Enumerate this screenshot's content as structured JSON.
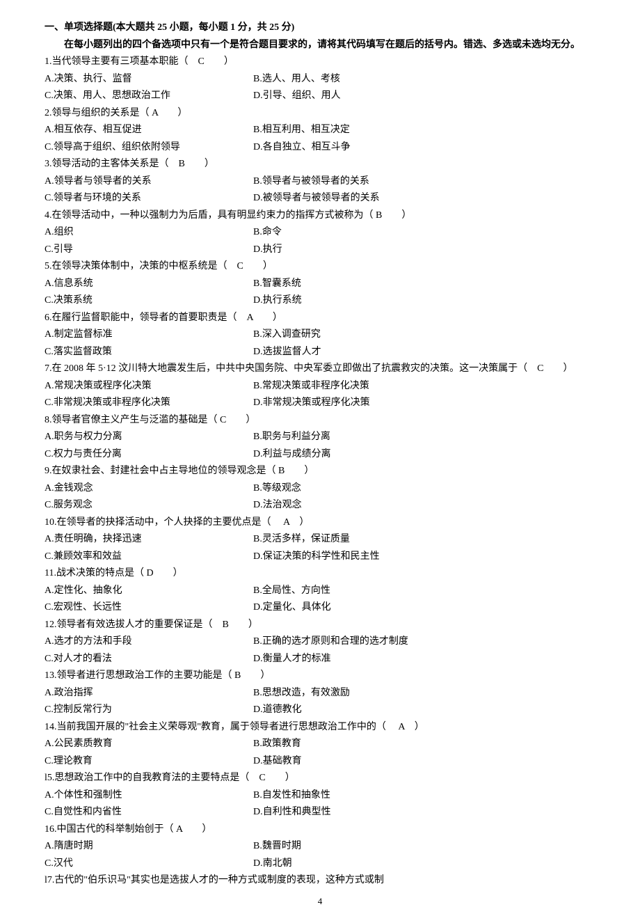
{
  "section_title": "一、单项选择题(本大题共 25 小题，每小题 1 分，共 25 分)",
  "instruction": "在每小题列出的四个备选项中只有一个是符合题目要求的，请将其代码填写在题后的括号内。错选、多选或未选均无分。",
  "page_number": "4",
  "questions": [
    {
      "stem": "1.当代领导主要有三项基本职能（　C　　）",
      "A": "A.决策、执行、监督",
      "B": "B.选人、用人、考核",
      "C": "C.决策、用人、思想政治工作",
      "D": "D.引导、组织、用人"
    },
    {
      "stem": "2.领导与组织的关系是（  A　　）",
      "A": "A.相互依存、相互促进",
      "B": "B.相互利用、相互决定",
      "C": "C.领导高于组织、组织依附领导",
      "D": "D.各自独立、相互斗争"
    },
    {
      "stem": "3.领导活动的主客体关系是（　B　　）",
      "A": "A.领导者与领导者的关系",
      "B": "B.领导者与被领导者的关系",
      "C": "C.领导者与环境的关系",
      "D": "D.被领导者与被领导者的关系"
    },
    {
      "stem": "4.在领导活动中，一种以强制力为后盾，具有明显约束力的指挥方式被称为（  B　　）",
      "A": "A.组织",
      "B": "B.命令",
      "C": "C.引导",
      "D": "D.执行"
    },
    {
      "stem": "5.在领导决策体制中，决策的中枢系统是（　C　　）",
      "A": "A.信息系统",
      "B": "B.智囊系统",
      "C": "C.决策系统",
      "D": "D.执行系统"
    },
    {
      "stem": "6.在履行监督职能中，领导者的首要职责是（　A　　）",
      "A": "A.制定监督标准",
      "B": "B.深入调查研究",
      "C": "C.落实监督政策",
      "D": "D.选拔监督人才"
    },
    {
      "stem": "7.在 2008 年 5·12 汶川特大地震发生后，中共中央国务院、中央军委立即做出了抗震救灾的决策。这一决策属于（　C　　）",
      "A": "A.常规决策或程序化决策",
      "B": "B.常规决策或非程序化决策",
      "C": "C.非常规决策或非程序化决策",
      "D": "D.非常规决策或程序化决策"
    },
    {
      "stem": "8.领导者官僚主义产生与泛滥的基础是（  C　　）",
      "A": "A.职务与权力分离",
      "B": "B.职务与利益分离",
      "C": "C.权力与责任分离",
      "D": "D.利益与成绩分离"
    },
    {
      "stem": "9.在奴隶社会、封建社会中占主导地位的领导观念是（  B　　）",
      "A": "A.金钱观念",
      "B": "B.等级观念",
      "C": "C.服务观念",
      "D": "D.法治观念"
    },
    {
      "stem": "10.在领导者的抉择活动中，个人抉择的主要优点是（　 A　）",
      "A": "A.责任明确，抉择迅速",
      "B": "B.灵活多样，保证质量",
      "C": "C.兼顾效率和效益",
      "D": "D.保证决策的科学性和民主性"
    },
    {
      "stem": "11.战术决策的特点是（  D　　）",
      "A": "A.定性化、抽象化",
      "B": "B.全局性、方向性",
      "C": "C.宏观性、长远性",
      "D": "D.定量化、具体化"
    },
    {
      "stem": "12.领导者有效选拔人才的重要保证是（　B　　）",
      "A": "A.选才的方法和手段",
      "B": "B.正确的选才原则和合理的选才制度",
      "C": "C.对人才的看法",
      "D": "D.衡量人才的标准"
    },
    {
      "stem": "13.领导者进行思想政治工作的主要功能是（  B　　）",
      "A": "A.政治指挥",
      "B": "B.思想改造，有效激励",
      "C": "C.控制反常行为",
      "D": "D.道德教化"
    },
    {
      "stem": "14.当前我国开展的\"社会主义荣辱观\"教育，属于领导者进行思想政治工作中的（　  A　）",
      "A": "A.公民素质教育",
      "B": "B.政策教育",
      "C": "C.理论教育",
      "D": "D.基础教育"
    },
    {
      "stem": "l5.思想政治工作中的自我教育法的主要特点是（　C　　）",
      "A": "A.个体性和强制性",
      "B": "B.自发性和抽象性",
      "C": "C.自觉性和内省性",
      "D": "D.自利性和典型性"
    },
    {
      "stem": "16.中国古代的科举制始创于（  A　　）",
      "A": "A.隋唐时期",
      "B": "B.魏晋时期",
      "C": "C.汉代",
      "D": "D.南北朝"
    }
  ],
  "trailing_line": "l7.古代的\"伯乐识马\"其实也是选拔人才的一种方式或制度的表现，这种方式或制"
}
